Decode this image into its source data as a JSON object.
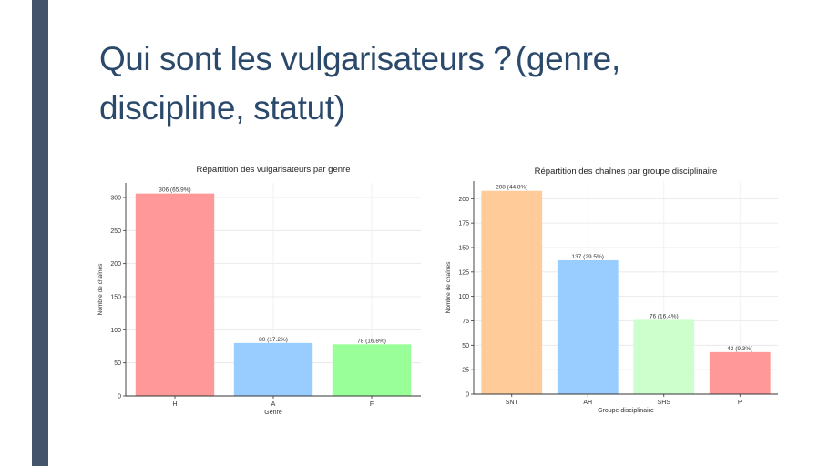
{
  "slide": {
    "title_main": "Qui sont les vulgarisateurs ?",
    "title_rest_line1": "(genre,",
    "title_line2": "discipline, statut)"
  },
  "colors": {
    "sidebar": "#44546a",
    "title": "#2b4a6b"
  },
  "chart_data": [
    {
      "type": "bar",
      "title": "Répartition des vulgarisateurs par genre",
      "xlabel": "Genre",
      "ylabel": "Nombre de chaînes",
      "categories": [
        "H",
        "A",
        "F"
      ],
      "values": [
        306,
        80,
        78
      ],
      "data_labels": [
        "306 (65.9%)",
        "80 (17.2%)",
        "78 (16.8%)"
      ],
      "colors": [
        "#ff9999",
        "#99ccff",
        "#99ff99"
      ],
      "ylim": [
        0,
        322
      ],
      "yticks": [
        0,
        50,
        100,
        150,
        200,
        250,
        300
      ],
      "grid": true
    },
    {
      "type": "bar",
      "title": "Répartition des chaînes par groupe disciplinaire",
      "xlabel": "Groupe disciplinaire",
      "ylabel": "Nombre de chaînes",
      "categories": [
        "SNT",
        "AH",
        "SHS",
        "P"
      ],
      "values": [
        208,
        137,
        76,
        43
      ],
      "data_labels": [
        "208 (44.8%)",
        "137 (29.5%)",
        "76 (16.4%)",
        "43 (9.3%)"
      ],
      "colors": [
        "#ffcc99",
        "#99ccff",
        "#ccffcc",
        "#ff9999"
      ],
      "ylim": [
        0,
        218
      ],
      "yticks": [
        0,
        25,
        50,
        75,
        100,
        125,
        150,
        175,
        200
      ],
      "grid": true
    }
  ]
}
